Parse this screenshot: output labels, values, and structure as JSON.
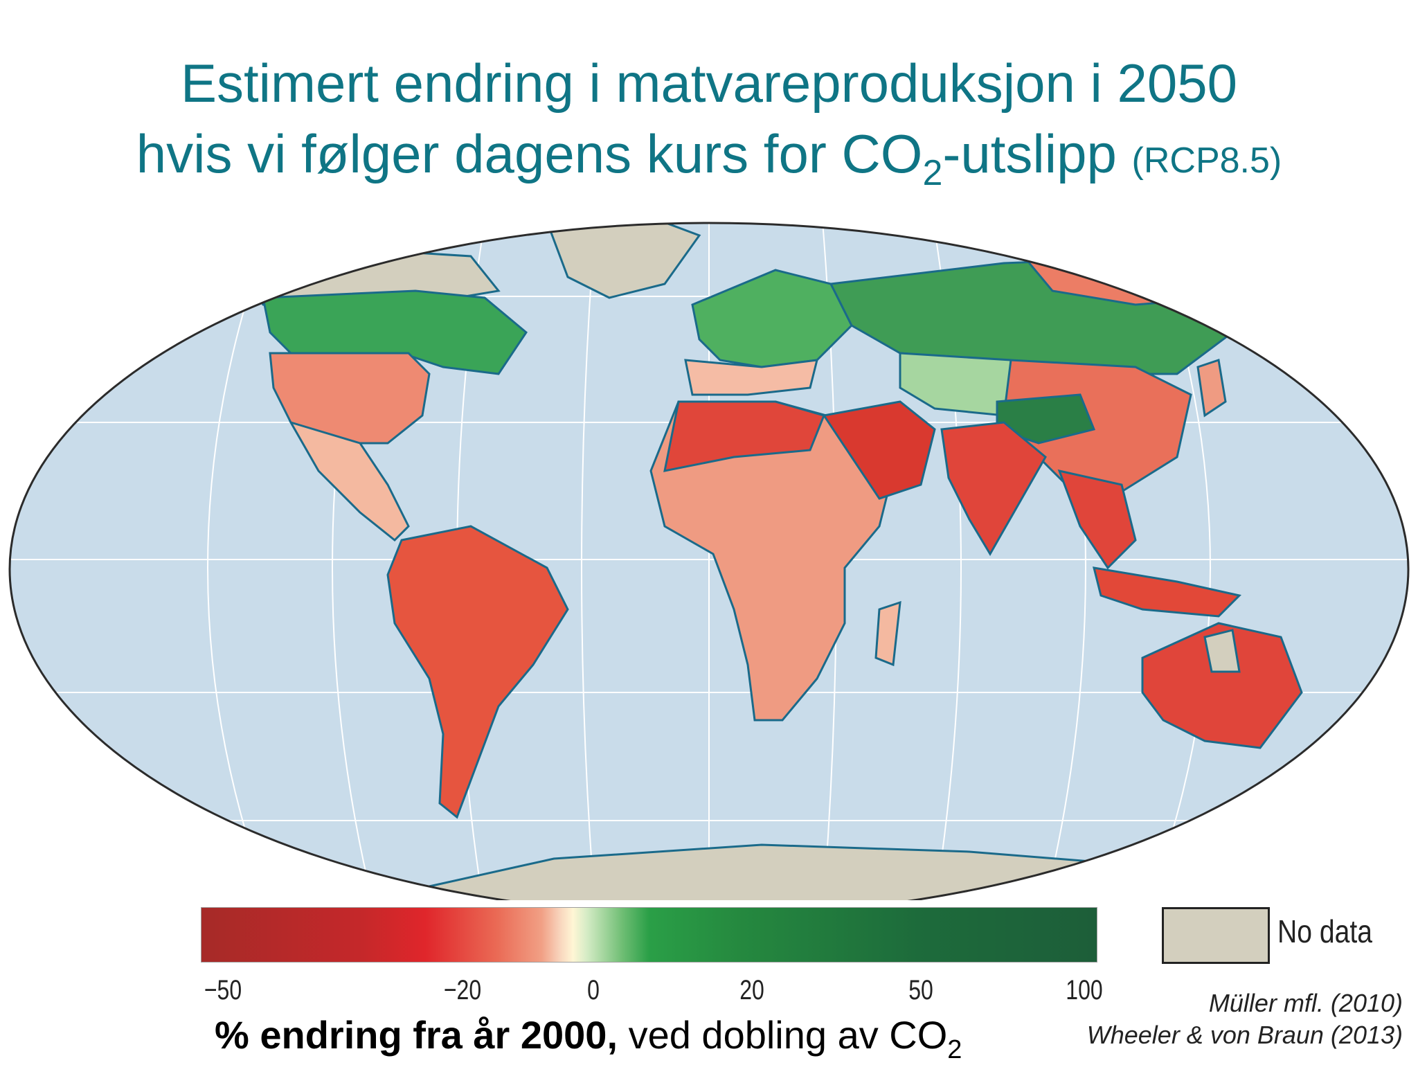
{
  "title": {
    "line1": "Estimert endring i matvareproduksjon i 2050",
    "line2_pre": "hvis vi følger dagens kurs for CO",
    "line2_sub": "2",
    "line2_post": "-utslipp",
    "line2_small": "(RCP8.5)"
  },
  "legend": {
    "ticks": [
      "−50",
      "−20",
      "0",
      "20",
      "50",
      "100"
    ],
    "no_data_label": "No data",
    "gradient_colors": [
      "#a62a28",
      "#e0262b",
      "#f1a085",
      "#fff6d5",
      "#6fbe74",
      "#2a9f47",
      "#1d5e39"
    ],
    "no_data_color": "#d3cfbe"
  },
  "axis_label": {
    "bold": "% endring fra år 2000,",
    "normal": " ved dobling av CO",
    "sub": "2"
  },
  "credits": [
    "Müller mfl. (2010)",
    "Wheeler & von Braun (2013)"
  ],
  "colors": {
    "title": "#0f7585",
    "ocean": "#c9dcea",
    "coast": "#1a6a8a"
  }
}
